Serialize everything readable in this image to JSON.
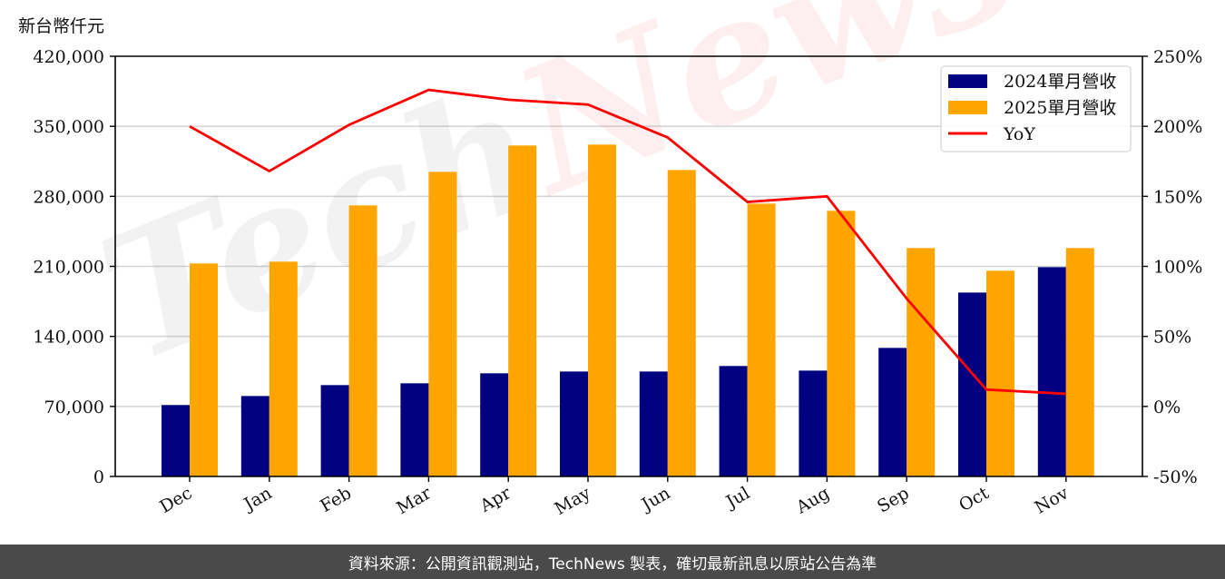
{
  "unit_label": "新台幣仟元",
  "footer": {
    "text": "資料來源：公開資訊觀測站，TechNews 製表，確切最新訊息以原站公告為準"
  },
  "watermark": "TechNews",
  "colors": {
    "bar_2024": "#000080",
    "bar_2025": "#FFA500",
    "yoy_line": "#FF0000",
    "grid": "#d3d3d3",
    "footer_bg": "#4a4a4a"
  },
  "chart_data": {
    "type": "bar",
    "title": "",
    "xlabel": "",
    "ylabel": "新台幣仟元",
    "y2label": "",
    "categories": [
      "Dec",
      "Jan",
      "Feb",
      "Mar",
      "Apr",
      "May",
      "Jun",
      "Jul",
      "Aug",
      "Sep",
      "Oct",
      "Nov"
    ],
    "series": [
      {
        "name": "2024單月營收",
        "type": "bar",
        "axis": "left",
        "color": "#000080",
        "values": [
          71400,
          80400,
          91300,
          93100,
          103100,
          104900,
          104900,
          110400,
          105800,
          128500,
          183800,
          209200
        ]
      },
      {
        "name": "2025單月營收",
        "type": "bar",
        "axis": "left",
        "color": "#FFA500",
        "values": [
          212900,
          214700,
          270900,
          304500,
          330800,
          331700,
          306300,
          272700,
          265500,
          228300,
          205600,
          228300
        ]
      },
      {
        "name": "YoY",
        "type": "line",
        "axis": "right",
        "color": "#FF0000",
        "unit": "%",
        "values": [
          200,
          168,
          201,
          226,
          219,
          215.5,
          192,
          146,
          150,
          77,
          12,
          9
        ]
      }
    ],
    "ylim": [
      0,
      420000
    ],
    "yticks": [
      0,
      70000,
      140000,
      210000,
      280000,
      350000,
      420000
    ],
    "ytick_labels": [
      "0",
      "70,000",
      "140,000",
      "210,000",
      "280,000",
      "350,000",
      "420,000"
    ],
    "y2lim": [
      -50,
      250
    ],
    "y2ticks": [
      -50,
      0,
      50,
      100,
      150,
      200,
      250
    ],
    "y2tick_labels": [
      "-50%",
      "0%",
      "50%",
      "100%",
      "150%",
      "200%",
      "250%"
    ],
    "grid": true,
    "legend_position": "upper right",
    "legend": [
      "2024單月營收",
      "2025單月營收",
      "YoY"
    ]
  }
}
